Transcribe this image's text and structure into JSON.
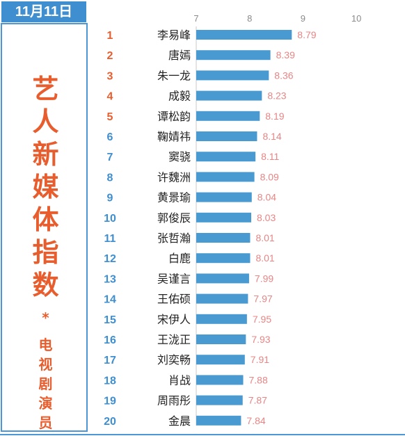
{
  "date_label": "11月11日",
  "panel": {
    "title_chars": [
      "艺",
      "人",
      "新",
      "媒",
      "体",
      "指",
      "数"
    ],
    "asterisk": "*",
    "subtitle_chars": [
      "电",
      "视",
      "剧",
      "演",
      "员"
    ]
  },
  "colors": {
    "accent_orange": "#e85d2e",
    "rank_blue": "#3f8ed0",
    "bar_blue": "#4a9ad2",
    "value_pink": "#e88585",
    "border_blue": "#4a96d6"
  },
  "chart_data": {
    "type": "bar",
    "orientation": "horizontal",
    "xlim": [
      7,
      10
    ],
    "xticks": [
      "7",
      "8",
      "9",
      "10"
    ],
    "categories": [
      "李易峰",
      "唐嫣",
      "朱一龙",
      "成毅",
      "谭松韵",
      "鞠婧祎",
      "窦骁",
      "许魏洲",
      "黄景瑜",
      "郭俊辰",
      "张哲瀚",
      "白鹿",
      "吴谨言",
      "王佑硕",
      "宋伊人",
      "王泷正",
      "刘奕畅",
      "肖战",
      "周雨彤",
      "金晨"
    ],
    "ranks": [
      "1",
      "2",
      "3",
      "4",
      "5",
      "6",
      "7",
      "8",
      "9",
      "10",
      "11",
      "12",
      "13",
      "14",
      "15",
      "16",
      "17",
      "18",
      "19",
      "20"
    ],
    "values": [
      8.79,
      8.39,
      8.36,
      8.23,
      8.19,
      8.14,
      8.11,
      8.09,
      8.04,
      8.03,
      8.01,
      8.01,
      7.99,
      7.97,
      7.95,
      7.93,
      7.91,
      7.88,
      7.87,
      7.84
    ],
    "value_labels": [
      "8.79",
      "8.39",
      "8.36",
      "8.23",
      "8.19",
      "8.14",
      "8.11",
      "8.09",
      "8.04",
      "8.03",
      "8.01",
      "8.01",
      "7.99",
      "7.97",
      "7.95",
      "7.93",
      "7.91",
      "7.88",
      "7.87",
      "7.84"
    ]
  }
}
